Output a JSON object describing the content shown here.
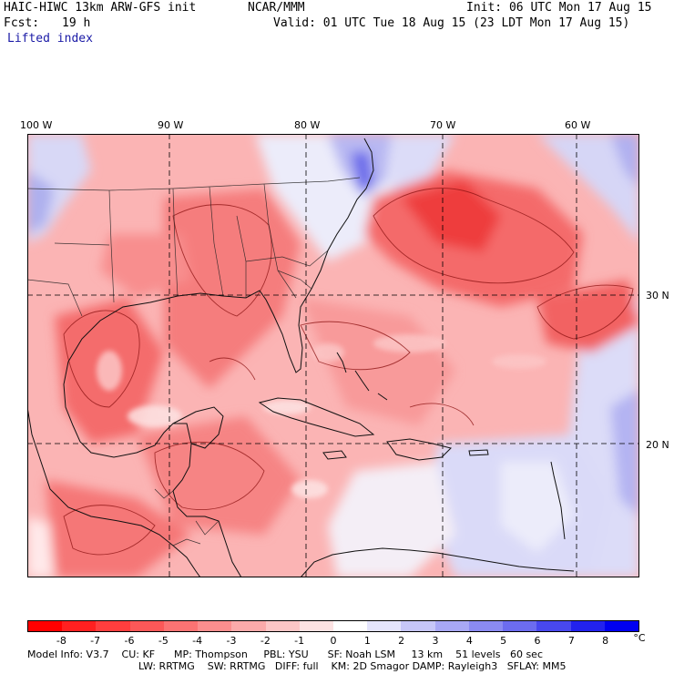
{
  "header": {
    "title": "HAIC-HIWC 13km ARW-GFS init",
    "org": "NCAR/MMM",
    "fcst_label": "Fcst:",
    "fcst_value": "19 h",
    "init": "Init: 06 UTC Mon 17 Aug 15",
    "valid": "Valid: 01 UTC Tue 18 Aug 15 (23 LDT Mon 17 Aug 15)",
    "field": "Lifted index"
  },
  "map": {
    "lon_labels": [
      "100 W",
      "90 W",
      "80 W",
      "70 W",
      "60 W"
    ],
    "lat_labels": [
      "30 N",
      "20 N"
    ]
  },
  "colorbar": {
    "labels": [
      "-8",
      "-7",
      "-6",
      "-5",
      "-4",
      "-3",
      "-2",
      "-1",
      "0",
      "1",
      "2",
      "3",
      "4",
      "5",
      "6",
      "7",
      "8"
    ],
    "unit": "°C",
    "colors": [
      "#ff0000",
      "#ff2020",
      "#fe3e3e",
      "#fc5858",
      "#fb7373",
      "#fb8e8e",
      "#fbaaaa",
      "#fcc6c6",
      "#fde3e3",
      "#ffffff",
      "#e4e4fc",
      "#c6c6f8",
      "#a8a8f5",
      "#8a8af2",
      "#6c6cef",
      "#4848ee",
      "#2222ee",
      "#0000f0"
    ]
  },
  "footer": {
    "line1": "Model Info: V3.7    CU: KF      MP: Thompson     PBL: YSU      SF: Noah LSM     13 km    51 levels   60 sec",
    "line2": "LW: RRTMG    SW: RRTMG   DIFF: full    KM: 2D Smagor DAMP: Rayleigh3   SFLAY: MM5"
  }
}
